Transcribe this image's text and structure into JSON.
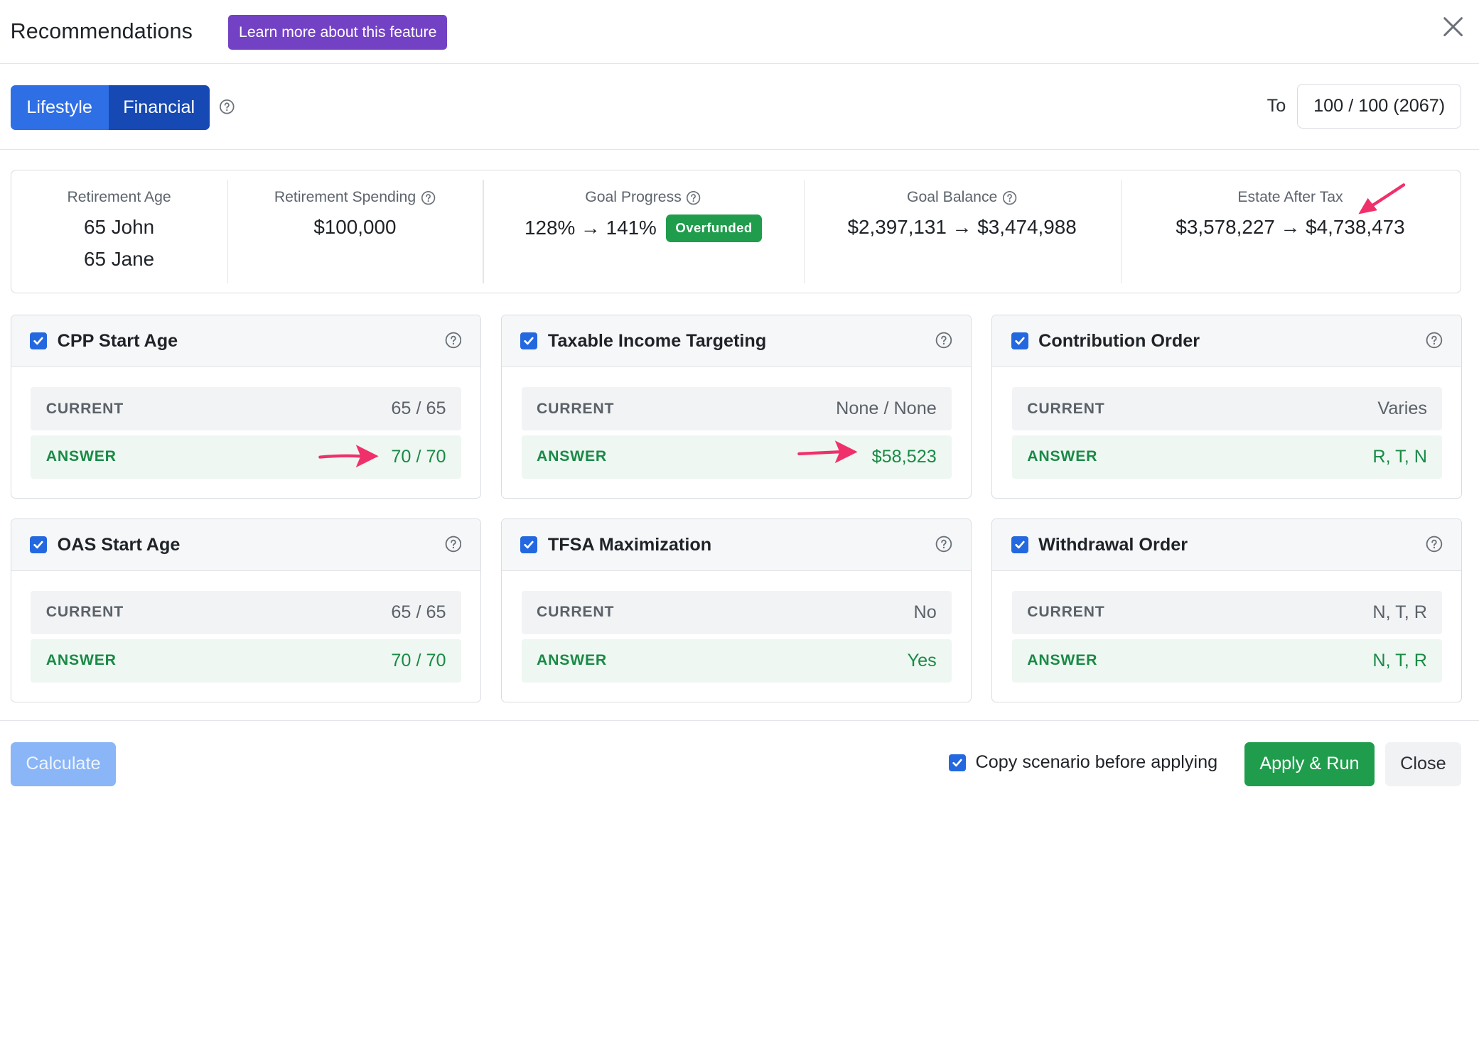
{
  "header": {
    "title": "Recommendations",
    "learn_more_label": "Learn more about this feature"
  },
  "toggle": {
    "options": [
      "Lifestyle",
      "Financial"
    ],
    "selected": "Financial",
    "to_label": "To",
    "to_value": "100 / 100 (2067)"
  },
  "summary": {
    "retirement_age": {
      "label": "Retirement Age",
      "line1": "65 John",
      "line2": "65 Jane"
    },
    "retirement_spending": {
      "label": "Retirement Spending",
      "value": "$100,000"
    },
    "goal_progress": {
      "label": "Goal Progress",
      "value": "128% → 141%",
      "badge": "Overfunded"
    },
    "goal_balance": {
      "label": "Goal Balance",
      "value": "$2,397,131 → $3,474,988"
    },
    "estate_after_tax": {
      "label": "Estate After Tax",
      "value": "$3,578,227 → $4,738,473"
    }
  },
  "cards": [
    {
      "title": "CPP Start Age",
      "checked": true,
      "current_label": "CURRENT",
      "current": "65 / 65",
      "answer_label": "ANSWER",
      "answer": "70 / 70"
    },
    {
      "title": "Taxable Income Targeting",
      "checked": true,
      "current_label": "CURRENT",
      "current": "None / None",
      "answer_label": "ANSWER",
      "answer": "$58,523"
    },
    {
      "title": "Contribution Order",
      "checked": true,
      "current_label": "CURRENT",
      "current": "Varies",
      "answer_label": "ANSWER",
      "answer": "R, T, N"
    },
    {
      "title": "OAS Start Age",
      "checked": true,
      "current_label": "CURRENT",
      "current": "65 / 65",
      "answer_label": "ANSWER",
      "answer": "70 / 70"
    },
    {
      "title": "TFSA Maximization",
      "checked": true,
      "current_label": "CURRENT",
      "current": "No",
      "answer_label": "ANSWER",
      "answer": "Yes"
    },
    {
      "title": "Withdrawal Order",
      "checked": true,
      "current_label": "CURRENT",
      "current": "N, T, R",
      "answer_label": "ANSWER",
      "answer": "N, T, R"
    }
  ],
  "footer": {
    "calculate_label": "Calculate",
    "copy_checked": true,
    "copy_label": "Copy scenario before applying",
    "apply_label": "Apply & Run",
    "close_label": "Close"
  },
  "colors": {
    "accent_blue": "#2f6fe6",
    "accent_dark_blue": "#1649b3",
    "purple": "#7342c4",
    "green": "#1f9d4c",
    "answer_green": "#1a8a47",
    "annotation_arrow": "#f0306b"
  },
  "icons": [
    "close-icon",
    "help-icon",
    "checkbox-checked-icon",
    "annotation-arrow-icon"
  ]
}
